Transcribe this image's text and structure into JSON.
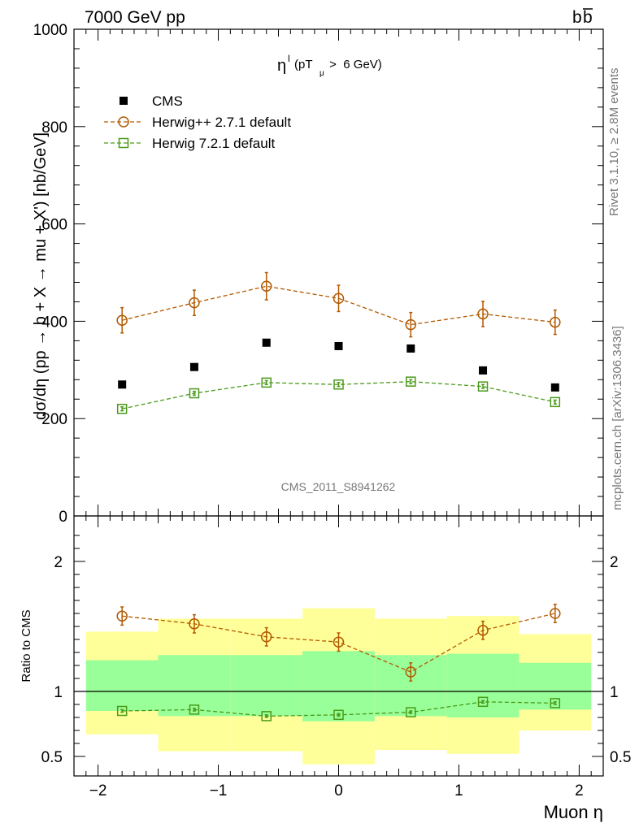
{
  "header": {
    "left_label": "7000 GeV pp",
    "right_label_base": "b",
    "right_label_bar": "b"
  },
  "side_text": {
    "rivet": "Rivet 3.1.10, ≥ 2.8M events",
    "mcplots": "mcplots.cern.ch [arXiv:1306.3436]"
  },
  "watermark": "CMS_2011_S8941262",
  "chart_data": [
    {
      "type": "scatter",
      "panel": "main",
      "title_base": "η",
      "title_sup": "l",
      "title_cond": "(pT",
      "title_sub": "μ",
      "title_tail": " >  6 GeV)",
      "ylabel": "dσ/dη (pp → b + X → mu + X') [nb/GeV]",
      "xlabel": "Muon η",
      "xlim": [
        -2.2,
        2.2
      ],
      "ylim": [
        0,
        1000
      ],
      "y_ticks": [
        0,
        200,
        400,
        600,
        800,
        1000
      ],
      "y_tick_labels": [
        "0",
        "200",
        "400",
        "600",
        "800",
        "1000"
      ],
      "x": [
        -1.8,
        -1.2,
        -0.6,
        0.0,
        0.6,
        1.2,
        1.8
      ],
      "legend_position": "top-left",
      "series": [
        {
          "name": "CMS",
          "marker": "filled-square",
          "color": "#000000",
          "values": [
            270,
            306,
            356,
            349,
            344,
            299,
            264
          ]
        },
        {
          "name": "Herwig++ 2.7.1 default",
          "marker": "open-circle",
          "color": "#b35900",
          "values": [
            402,
            438,
            472,
            447,
            393,
            415,
            398
          ],
          "errors": [
            26,
            26,
            28,
            27,
            25,
            26,
            25
          ]
        },
        {
          "name": "Herwig 7.2.1 default",
          "marker": "open-square",
          "color": "#4a9a1a",
          "values": [
            220,
            252,
            274,
            270,
            276,
            266,
            234
          ],
          "errors": [
            4,
            4,
            4,
            4,
            4,
            4,
            4
          ]
        }
      ]
    },
    {
      "type": "scatter",
      "panel": "ratio",
      "ylabel": "Ratio to CMS",
      "xlim": [
        -2.2,
        2.2
      ],
      "ylim": [
        0.35,
        2.35
      ],
      "y_tick_labels": [
        "0.5",
        "1",
        "2"
      ],
      "y_ticks": [
        0.5,
        1,
        2
      ],
      "x_tick_labels": [
        "−2",
        "−1",
        "0",
        "1",
        "2"
      ],
      "x_ticks": [
        -2,
        -1,
        0,
        1,
        2
      ],
      "bins": [
        [
          -2.1,
          -1.5
        ],
        [
          -1.5,
          -0.9
        ],
        [
          -0.9,
          -0.3
        ],
        [
          -0.3,
          0.3
        ],
        [
          0.3,
          0.9
        ],
        [
          0.9,
          1.5
        ],
        [
          1.5,
          2.1
        ]
      ],
      "band_colors": {
        "outer": "#ffff99",
        "inner": "#99ff99"
      },
      "band_outer": [
        [
          0.67,
          1.46
        ],
        [
          0.54,
          1.56
        ],
        [
          0.54,
          1.56
        ],
        [
          0.44,
          1.64
        ],
        [
          0.55,
          1.56
        ],
        [
          0.52,
          1.58
        ],
        [
          0.7,
          1.44
        ]
      ],
      "band_inner": [
        [
          0.85,
          1.24
        ],
        [
          0.81,
          1.28
        ],
        [
          0.81,
          1.28
        ],
        [
          0.77,
          1.31
        ],
        [
          0.81,
          1.28
        ],
        [
          0.8,
          1.29
        ],
        [
          0.86,
          1.22
        ]
      ],
      "series": [
        {
          "name": "Herwig++ 2.7.1 default",
          "color": "#b35900",
          "marker": "open-circle",
          "values": [
            1.58,
            1.52,
            1.42,
            1.38,
            1.15,
            1.47,
            1.6
          ],
          "errors": [
            0.07,
            0.07,
            0.07,
            0.07,
            0.07,
            0.07,
            0.07
          ]
        },
        {
          "name": "Herwig 7.2.1 default",
          "color": "#4a9a1a",
          "marker": "open-square",
          "values": [
            0.85,
            0.86,
            0.81,
            0.82,
            0.84,
            0.92,
            0.91
          ],
          "errors": [
            0.01,
            0.01,
            0.01,
            0.01,
            0.01,
            0.01,
            0.01
          ]
        }
      ]
    }
  ]
}
